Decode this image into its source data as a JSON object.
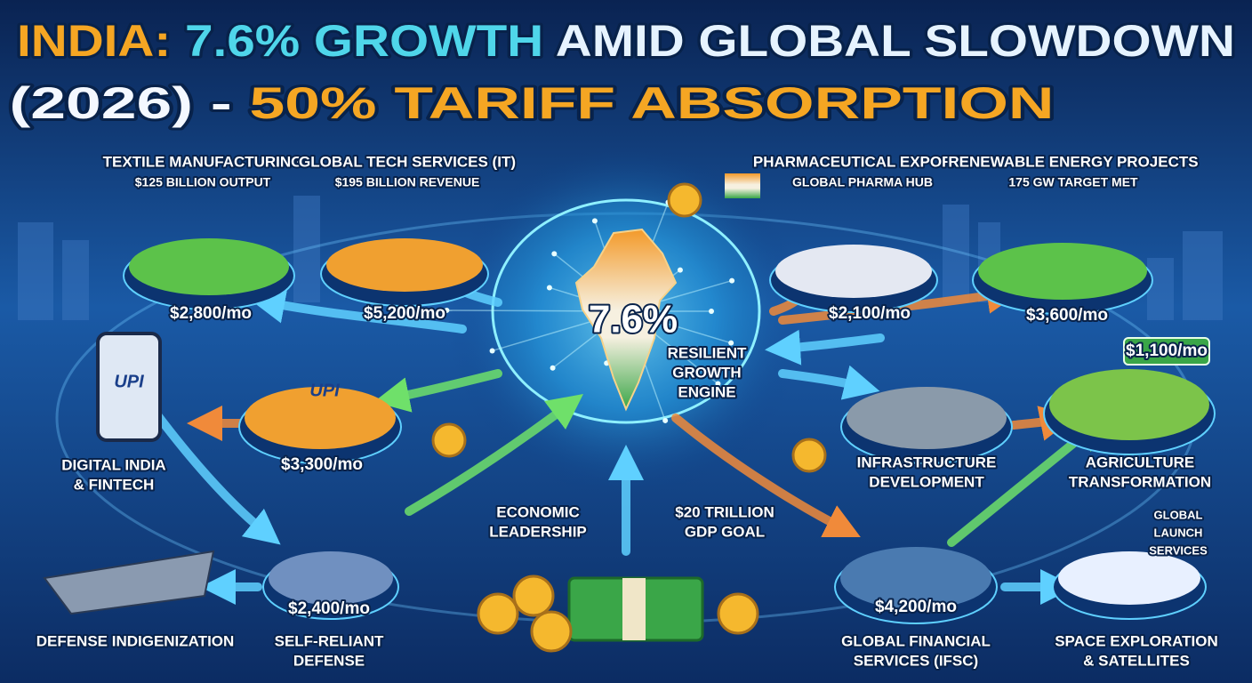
{
  "title": {
    "line1": [
      "INDIA:",
      "7.6% GROWTH",
      "AMID GLOBAL SLOWDOWN"
    ],
    "line2": [
      "(2026) -",
      "50% TARIFF ABSORPTION"
    ]
  },
  "center": {
    "value": "7.6%",
    "label": [
      "RESILIENT",
      "GROWTH",
      "ENGINE"
    ]
  },
  "nodes": [
    {
      "label": [
        "TEXTILE MANUFACTURING"
      ],
      "detail": [
        "$125 BILLION OUTPUT"
      ],
      "price": "$2,800/mo"
    },
    {
      "label": [
        "GLOBAL TECH SERVICES (IT)"
      ],
      "detail": [
        "$195 BILLION REVENUE"
      ],
      "price": "$5,200/mo"
    },
    {
      "label": [
        "PHARMACEUTICAL EXPORTS"
      ],
      "detail": [
        "GLOBAL PHARMA HUB"
      ],
      "price": "$2,100/mo"
    },
    {
      "label": [
        "RENEWABLE ENERGY PROJECTS"
      ],
      "detail": [
        "175 GW TARGET MET"
      ],
      "price": "$3,600/mo"
    },
    {
      "label": [
        "DIGITAL INDIA",
        "& FINTECH"
      ],
      "badge": "UPI"
    },
    {
      "badge": "UPI",
      "price": "$3,300/mo"
    },
    {
      "label": [
        "INFRASTRUCTURE",
        "DEVELOPMENT"
      ]
    },
    {
      "label": [
        "AGRICULTURE",
        "TRANSFORMATION"
      ],
      "price": "$1,100/mo"
    },
    {
      "label": [
        "DEFENSE INDIGENIZATION"
      ]
    },
    {
      "label": [
        "SELF-RELIANT",
        "DEFENSE"
      ],
      "price": "$2,400/mo"
    },
    {
      "label": [
        "ECONOMIC",
        "LEADERSHIP"
      ]
    },
    {
      "label": [
        "$20 TRILLION",
        "GDP GOAL"
      ]
    },
    {
      "label": [
        "GLOBAL FINANCIAL",
        "SERVICES (IFSC)"
      ],
      "price": "$4,200/mo"
    },
    {
      "label": [
        "SPACE EXPLORATION",
        "& SATELLITES"
      ],
      "detail": [
        "GLOBAL",
        "LAUNCH",
        "SERVICES"
      ]
    }
  ]
}
